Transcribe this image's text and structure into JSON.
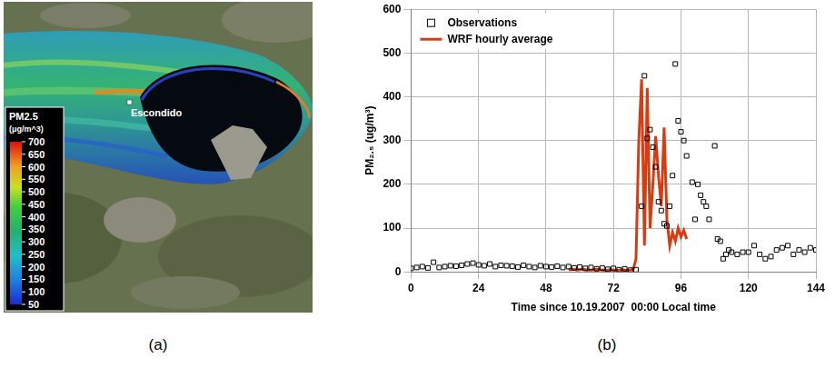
{
  "chart_data": [
    {
      "type": "map",
      "caption": "(a)",
      "annotations": [
        "Escondido"
      ],
      "colorbar": {
        "title": "PM2.5 (μg/m^3)",
        "range": [
          50,
          700
        ],
        "ticks": [
          50,
          100,
          150,
          200,
          250,
          300,
          350,
          400,
          450,
          500,
          550,
          600,
          650,
          700
        ]
      }
    },
    {
      "type": "scatter",
      "caption": "(b)",
      "x_label": "Time since 10.19.2007  00:00 Local time",
      "y_label": "PM₂.₅ (ug/m³)",
      "xlim": [
        0,
        144
      ],
      "xticks": [
        0,
        24,
        48,
        72,
        96,
        120,
        144
      ],
      "ylim": [
        0,
        600
      ],
      "yticks": [
        0,
        100,
        200,
        300,
        400,
        500,
        600
      ],
      "grid": true,
      "legend": "top-left",
      "series": [
        {
          "name": "Observations",
          "type": "scatter",
          "color": "#000000",
          "marker": "square",
          "x": [
            0,
            2,
            4,
            6,
            8,
            10,
            12,
            14,
            16,
            18,
            20,
            22,
            24,
            26,
            28,
            30,
            32,
            34,
            36,
            38,
            40,
            42,
            44,
            46,
            48,
            50,
            52,
            54,
            56,
            58,
            60,
            62,
            64,
            66,
            68,
            70,
            72,
            74,
            76,
            78,
            80,
            82,
            83,
            84,
            85,
            86,
            87,
            88,
            89,
            90,
            91,
            92,
            93,
            94,
            95,
            96,
            97,
            98,
            100,
            101,
            102,
            103,
            104,
            105,
            106,
            108,
            109,
            110,
            111,
            112,
            113,
            114,
            116,
            118,
            120,
            122,
            124,
            126,
            128,
            130,
            132,
            134,
            136,
            138,
            140,
            142,
            144
          ],
          "values": [
            8,
            10,
            12,
            9,
            22,
            10,
            12,
            14,
            13,
            15,
            18,
            20,
            16,
            14,
            18,
            12,
            15,
            14,
            13,
            11,
            15,
            12,
            10,
            14,
            12,
            11,
            13,
            10,
            12,
            9,
            11,
            8,
            10,
            7,
            9,
            6,
            8,
            5,
            7,
            4,
            5,
            150,
            448,
            305,
            325,
            285,
            240,
            160,
            140,
            110,
            105,
            150,
            220,
            475,
            345,
            320,
            300,
            265,
            205,
            120,
            200,
            175,
            160,
            150,
            120,
            288,
            75,
            70,
            30,
            40,
            50,
            45,
            40,
            45,
            45,
            60,
            40,
            30,
            35,
            50,
            55,
            60,
            40,
            50,
            45,
            55,
            50
          ]
        },
        {
          "name": "WRF hourly average",
          "type": "line",
          "color": "#d83b0f",
          "line_style": "solid",
          "x": [
            56,
            57,
            58,
            59,
            60,
            61,
            62,
            63,
            64,
            65,
            66,
            67,
            68,
            69,
            70,
            71,
            72,
            73,
            74,
            75,
            76,
            77,
            78,
            79,
            80,
            81,
            82,
            83,
            84,
            85,
            86,
            87,
            88,
            89,
            90,
            91,
            92,
            93,
            94,
            95,
            96,
            97,
            98
          ],
          "values": [
            5,
            5,
            6,
            4,
            5,
            6,
            5,
            4,
            4,
            5,
            6,
            5,
            4,
            3,
            4,
            5,
            4,
            3,
            4,
            5,
            4,
            3,
            4,
            5,
            30,
            300,
            440,
            60,
            420,
            100,
            200,
            310,
            220,
            150,
            330,
            120,
            60,
            90,
            70,
            100,
            80,
            95,
            75
          ]
        }
      ]
    }
  ]
}
